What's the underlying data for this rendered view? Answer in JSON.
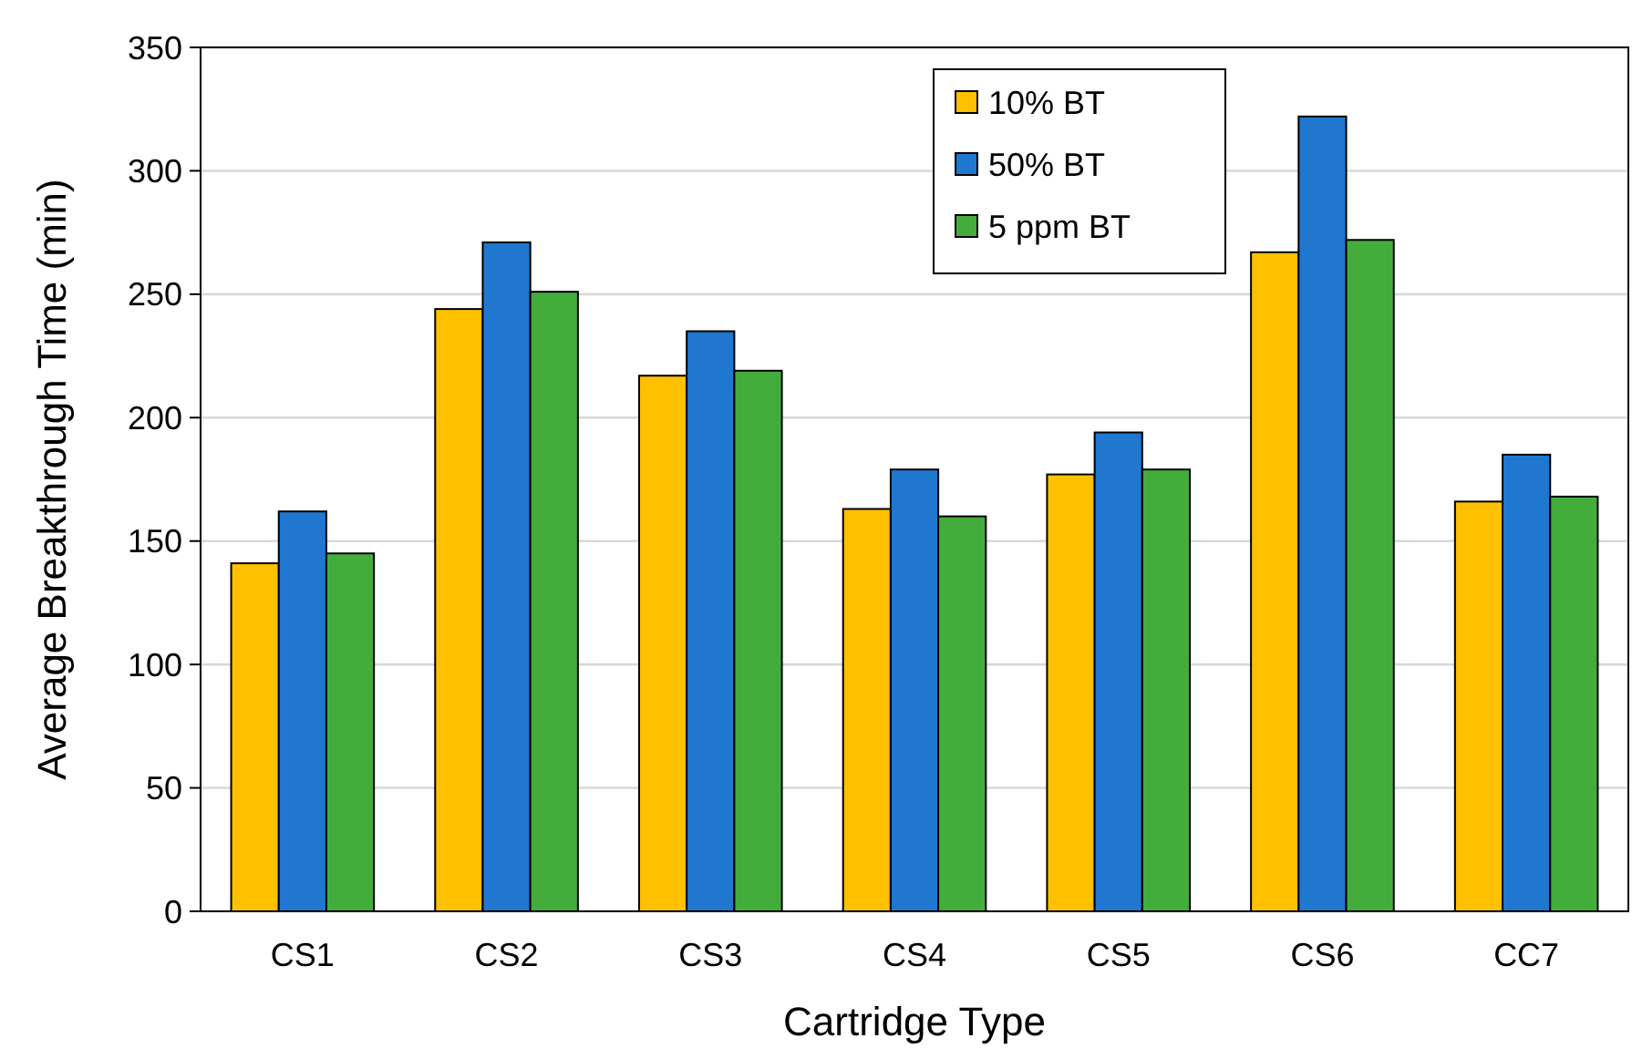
{
  "chart_data": {
    "type": "bar",
    "xlabel": "Cartridge Type",
    "ylabel": "Average Breakthrough Time (min)",
    "categories": [
      "CS1",
      "CS2",
      "CS3",
      "CS4",
      "CS5",
      "CS6",
      "CC7"
    ],
    "series": [
      {
        "name": "10% BT",
        "color": "#ffc000",
        "values": [
          141,
          244,
          217,
          163,
          177,
          267,
          166
        ]
      },
      {
        "name": "50% BT",
        "color": "#1f77d0",
        "values": [
          162,
          271,
          235,
          179,
          194,
          322,
          185
        ]
      },
      {
        "name": "5 ppm BT",
        "color": "#43ad3c",
        "values": [
          145,
          251,
          219,
          160,
          179,
          272,
          168
        ]
      }
    ],
    "ylim": [
      0,
      350
    ],
    "yticks": [
      0,
      50,
      100,
      150,
      200,
      250,
      300,
      350
    ],
    "grid": "y",
    "legend": "top"
  }
}
